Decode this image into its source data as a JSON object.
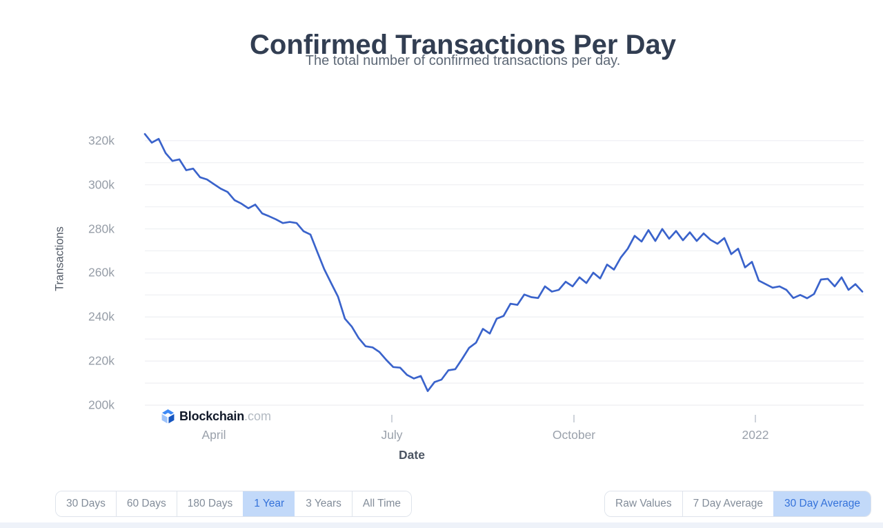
{
  "header": {
    "title": "Confirmed Transactions Per Day",
    "subtitle": "The total number of confirmed transactions per day."
  },
  "watermark": {
    "brand": "Blockchain",
    "domain": ".com",
    "icon": "blockchain-diamond-logo"
  },
  "chart_data": {
    "type": "line",
    "title": "Confirmed Transactions Per Day",
    "xlabel": "Date",
    "ylabel": "Transactions",
    "x_tick_labels": [
      "April",
      "July",
      "October",
      "2022"
    ],
    "y_tick_labels": [
      "320k",
      "300k",
      "280k",
      "260k",
      "240k",
      "220k",
      "200k"
    ],
    "y_gridline_step": 10000,
    "ylim": [
      195000,
      326000
    ],
    "x_range_approx": [
      "2021-03-01",
      "2022-02-28"
    ],
    "grid": "horizontal",
    "legend": "none",
    "selected_range": "1 Year",
    "selected_aggregation": "30 Day Average",
    "series": [
      {
        "name": "30 Day Average",
        "unit": "transactions per day (thousands)",
        "sample_interval_days": 3.5,
        "color": "#3a63cb",
        "values": [
          323.0,
          319.1,
          320.8,
          314.4,
          310.8,
          311.5,
          306.6,
          307.3,
          303.4,
          302.4,
          300.3,
          298.2,
          296.7,
          293.0,
          291.4,
          289.3,
          291.0,
          287.0,
          285.7,
          284.3,
          282.6,
          283.1,
          282.6,
          278.9,
          277.4,
          269.5,
          261.7,
          255.4,
          249.2,
          239.2,
          235.6,
          230.4,
          226.7,
          226.2,
          224.1,
          220.5,
          217.3,
          217.0,
          213.7,
          212.1,
          213.2,
          206.4,
          210.5,
          211.6,
          215.8,
          216.3,
          221.0,
          226.0,
          228.3,
          234.6,
          232.5,
          239.2,
          240.5,
          246.0,
          245.5,
          250.2,
          249.0,
          248.6,
          253.9,
          251.5,
          252.3,
          256.0,
          253.9,
          258.0,
          255.4,
          260.1,
          257.5,
          263.8,
          261.5,
          267.0,
          271.0,
          276.8,
          274.2,
          279.4,
          274.5,
          279.9,
          275.5,
          279.0,
          274.8,
          278.4,
          274.5,
          277.9,
          275.0,
          273.2,
          275.8,
          268.5,
          271.0,
          262.5,
          265.0,
          256.5,
          254.9,
          253.3,
          253.9,
          252.3,
          248.6,
          250.0,
          248.5,
          250.4,
          257.0,
          257.3,
          253.9,
          258.0,
          252.3,
          254.9,
          251.5
        ]
      }
    ]
  },
  "controls": {
    "range_buttons": [
      {
        "label": "30 Days",
        "selected": false
      },
      {
        "label": "60 Days",
        "selected": false
      },
      {
        "label": "180 Days",
        "selected": false
      },
      {
        "label": "1 Year",
        "selected": true
      },
      {
        "label": "3 Years",
        "selected": false
      },
      {
        "label": "All Time",
        "selected": false
      }
    ],
    "aggregation_buttons": [
      {
        "label": "Raw Values",
        "selected": false
      },
      {
        "label": "7 Day Average",
        "selected": false
      },
      {
        "label": "30 Day Average",
        "selected": true
      }
    ]
  },
  "colors": {
    "line": "#3a63cb",
    "gridline": "#f0f1f4",
    "tick_mark": "#c2c8d0",
    "title_text": "#323e52",
    "subtitle_text": "#5d6876",
    "axis_tick_text": "#969da7",
    "axis_title_text": "#525a66",
    "button_text": "#828c99",
    "button_border": "#dee3eb",
    "selected_button_bg": "#c2d9f9",
    "selected_button_text": "#3472da",
    "logo_brand_text": "#101828",
    "logo_domain_text": "#b3bac2"
  }
}
